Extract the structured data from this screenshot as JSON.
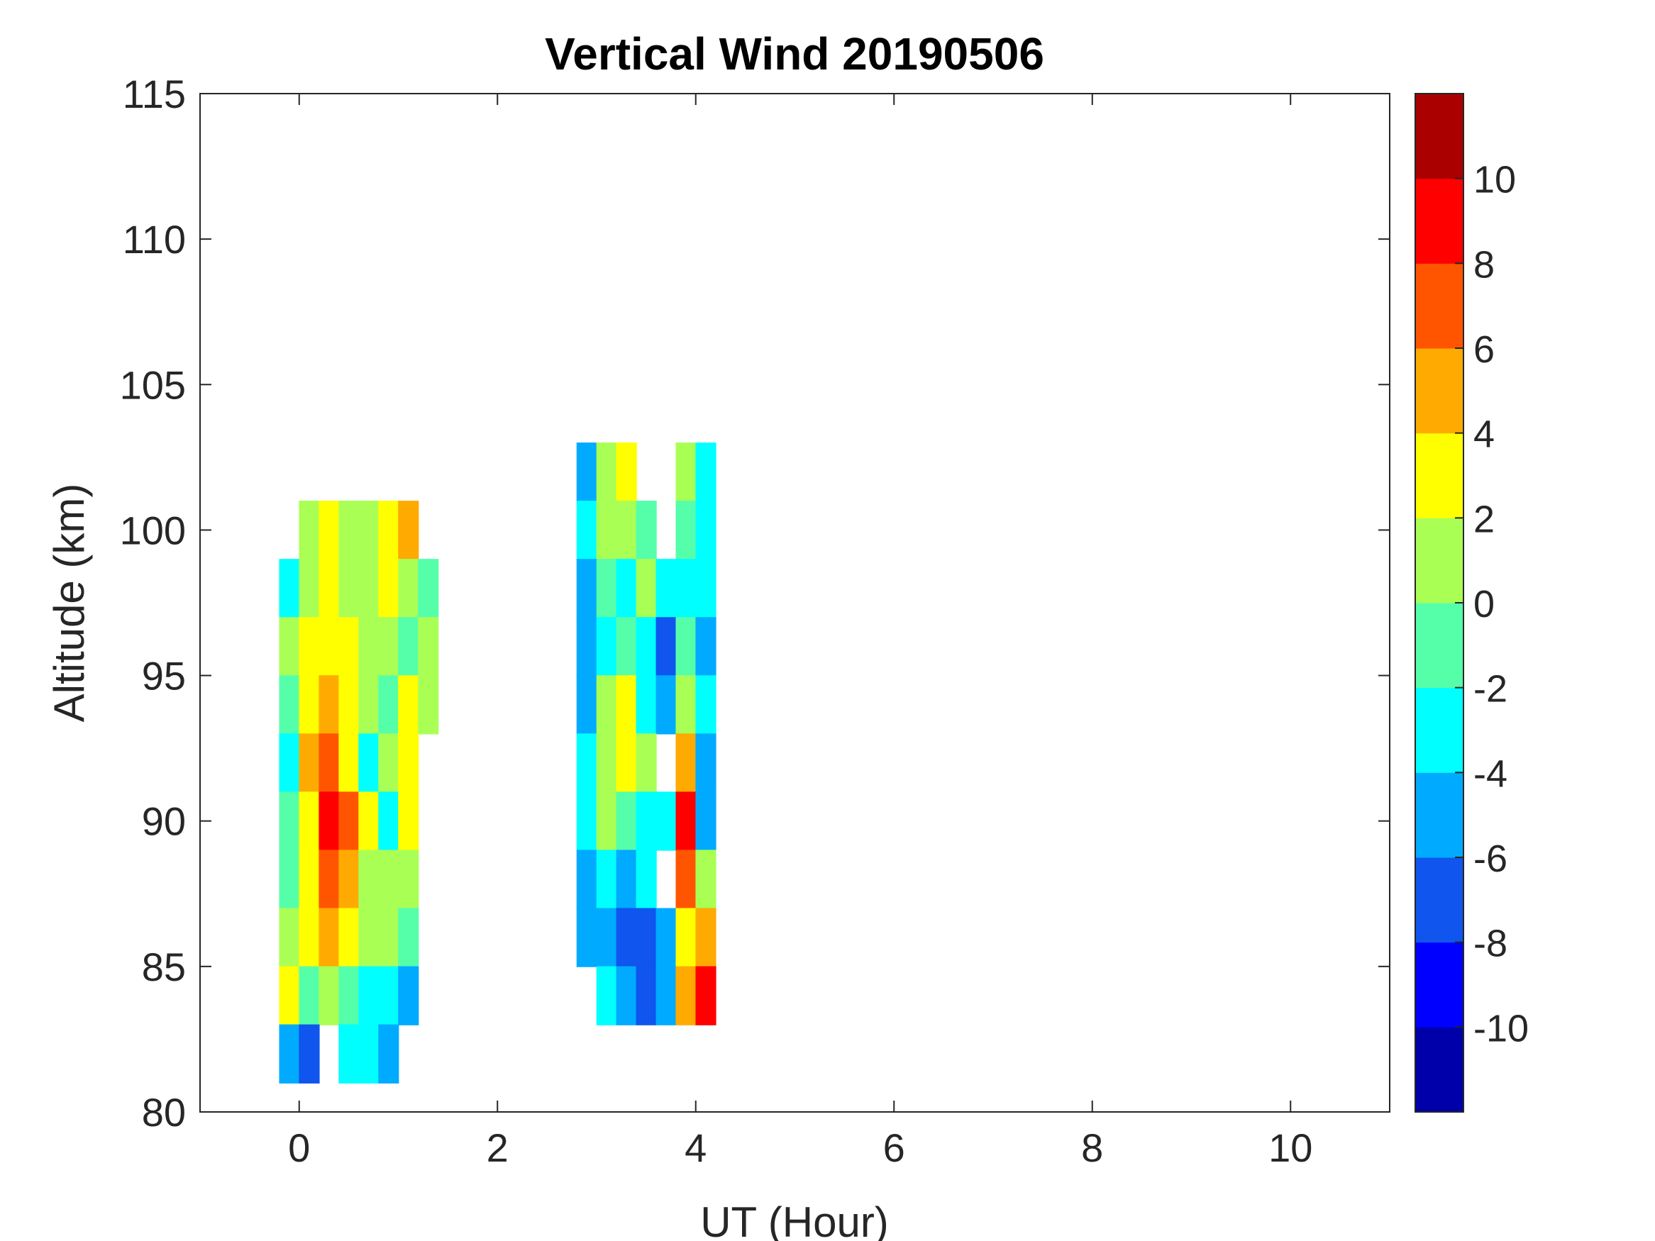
{
  "chart_data": {
    "type": "heatmap",
    "subtype": "filled-contour",
    "title": "Vertical Wind 20190506",
    "xlabel": "UT (Hour)",
    "ylabel": "Altitude (km)",
    "xlim": [
      -1,
      11
    ],
    "ylim": [
      80,
      115
    ],
    "xticks": [
      0,
      2,
      4,
      6,
      8,
      10
    ],
    "yticks": [
      80,
      85,
      90,
      95,
      100,
      105,
      110,
      115
    ],
    "grid": false,
    "colorbar": {
      "location": "right",
      "range": [
        -12,
        12
      ],
      "ticks": [
        -10,
        -8,
        -6,
        -4,
        -2,
        0,
        2,
        4,
        6,
        8,
        10
      ],
      "levels": [
        {
          "from": -12,
          "to": -10,
          "color": "#0000aa"
        },
        {
          "from": -10,
          "to": -8,
          "color": "#0000ff"
        },
        {
          "from": -8,
          "to": -6,
          "color": "#0f55ee"
        },
        {
          "from": -6,
          "to": -4,
          "color": "#00aaff"
        },
        {
          "from": -4,
          "to": -2,
          "color": "#00ffff"
        },
        {
          "from": -2,
          "to": 0,
          "color": "#55ffaa"
        },
        {
          "from": 0,
          "to": 2,
          "color": "#aaff55"
        },
        {
          "from": 2,
          "to": 4,
          "color": "#ffff00"
        },
        {
          "from": 4,
          "to": 6,
          "color": "#ffaa00"
        },
        {
          "from": 6,
          "to": 8,
          "color": "#ff5500"
        },
        {
          "from": 8,
          "to": 10,
          "color": "#ff0000"
        },
        {
          "from": 10,
          "to": 12,
          "color": "#aa0000"
        }
      ]
    },
    "data_blocks": [
      {
        "x_range": [
          -0.2,
          1.4
        ],
        "x": [
          -0.2,
          0.0,
          0.2,
          0.4,
          0.6,
          0.8,
          1.0,
          1.2
        ],
        "y": [
          100,
          98,
          96,
          94,
          92,
          90,
          88,
          86,
          84,
          82
        ],
        "values": [
          [
            null,
            1,
            2,
            0,
            1,
            2,
            4,
            null
          ],
          [
            -3,
            1,
            3,
            1,
            1,
            2,
            1,
            -2
          ],
          [
            0,
            2,
            3,
            2,
            0,
            1,
            -1,
            0
          ],
          [
            -2,
            3,
            5,
            3,
            0,
            -2,
            2,
            0
          ],
          [
            -3,
            4,
            6,
            3,
            -3,
            1,
            3,
            null
          ],
          [
            -2,
            3,
            9,
            6,
            2,
            -3,
            2,
            null
          ],
          [
            -1,
            2,
            7,
            5,
            1,
            1,
            0,
            null
          ],
          [
            1,
            2,
            5,
            3,
            0,
            0,
            -2,
            null
          ],
          [
            2,
            -1,
            0,
            -2,
            -4,
            -3,
            -5,
            null
          ],
          [
            -6,
            -8,
            null,
            -4,
            -4,
            -5,
            null,
            null
          ]
        ]
      },
      {
        "x_range": [
          2.8,
          4.0
        ],
        "x": [
          2.8,
          3.0,
          3.2,
          3.4,
          3.6,
          3.8,
          4.0
        ],
        "y": [
          102,
          100,
          98,
          96,
          94,
          92,
          90,
          88,
          86,
          84
        ],
        "values": [
          [
            -6,
            1,
            2,
            null,
            null,
            0,
            -4
          ],
          [
            -4,
            0,
            1,
            -2,
            null,
            -2,
            -3
          ],
          [
            -5,
            -2,
            -3,
            0,
            -3,
            -4,
            -3
          ],
          [
            -6,
            -4,
            -2,
            -4,
            -7,
            -2,
            -5
          ],
          [
            -5,
            0,
            2,
            -3,
            -5,
            0,
            -4
          ],
          [
            -4,
            1,
            2,
            0,
            null,
            4,
            -5
          ],
          [
            -3,
            0,
            -2,
            -4,
            -3,
            8,
            -6
          ],
          [
            -5,
            -3,
            -6,
            -4,
            null,
            6,
            0
          ],
          [
            -5,
            -6,
            -8,
            -8,
            -5,
            3,
            4
          ],
          [
            null,
            -4,
            -6,
            -7,
            -6,
            4,
            8
          ]
        ]
      }
    ]
  }
}
